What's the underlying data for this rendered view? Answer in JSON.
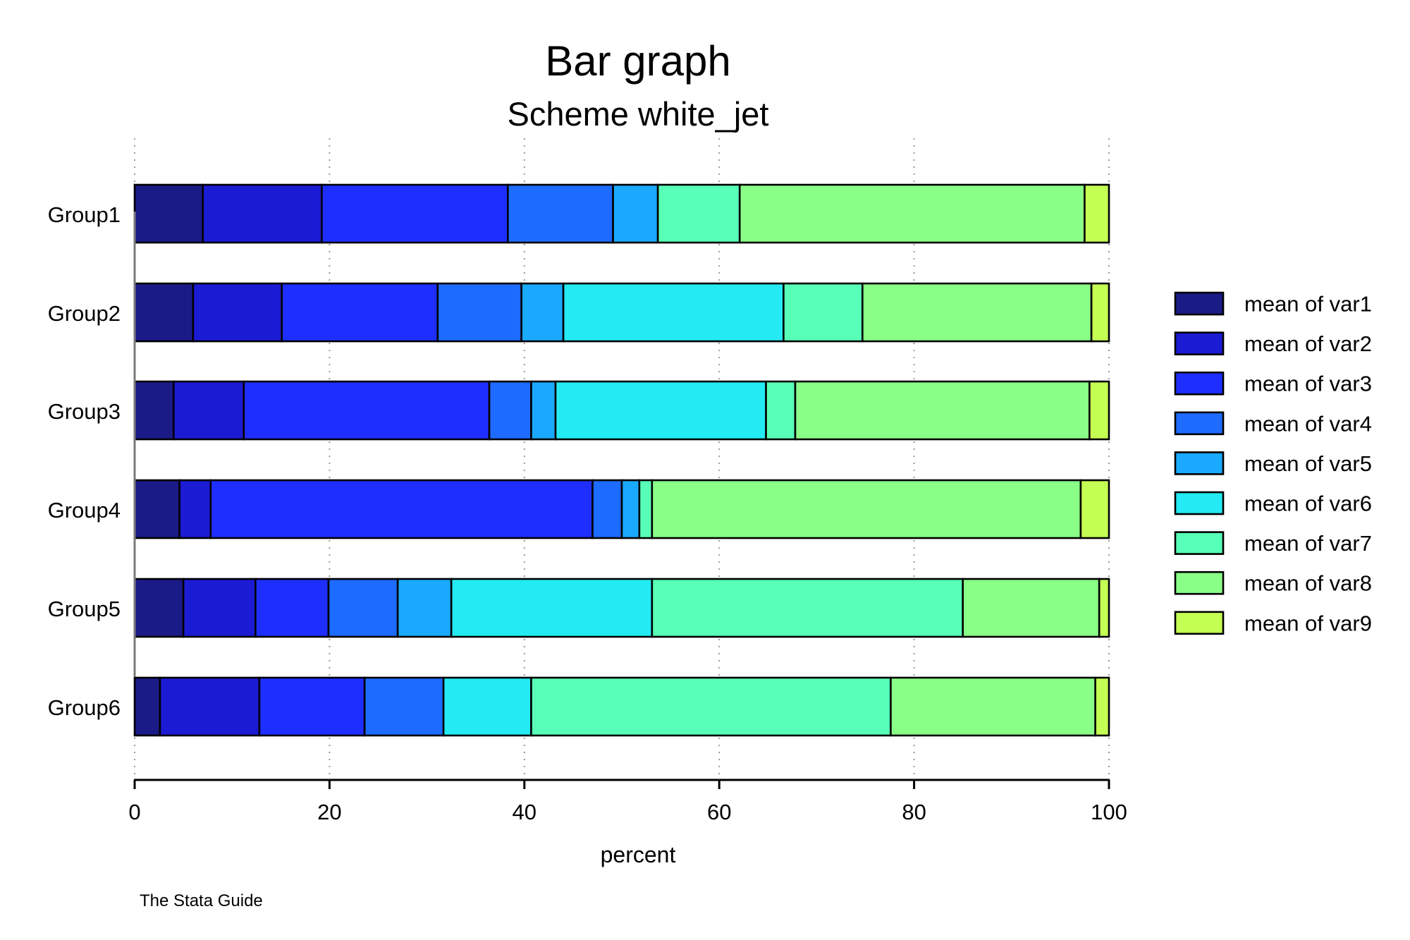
{
  "chart_data": {
    "type": "bar",
    "orientation": "horizontal",
    "stacked": "percent",
    "title": "Bar graph",
    "subtitle": "Scheme white_jet",
    "xlabel": "percent",
    "xlim": [
      0,
      100
    ],
    "xticks": [
      0,
      20,
      40,
      60,
      80,
      100
    ],
    "grid": true,
    "legend_position": "right",
    "note": "The Stata Guide",
    "categories": [
      "Group1",
      "Group2",
      "Group3",
      "Group4",
      "Group5",
      "Group6"
    ],
    "series": [
      {
        "name": "mean of var1",
        "color": "#1b1b87",
        "values": [
          7.0,
          6.0,
          4.0,
          4.6,
          5.0,
          2.6
        ]
      },
      {
        "name": "mean of var2",
        "color": "#1b1bd4",
        "values": [
          12.2,
          9.1,
          7.2,
          3.2,
          7.4,
          10.2
        ]
      },
      {
        "name": "mean of var3",
        "color": "#1e2eff",
        "values": [
          19.1,
          16.0,
          25.2,
          39.2,
          7.5,
          10.8
        ]
      },
      {
        "name": "mean of var4",
        "color": "#1e6bff",
        "values": [
          10.8,
          8.6,
          4.3,
          3.0,
          7.1,
          8.1
        ]
      },
      {
        "name": "mean of var5",
        "color": "#1aa9ff",
        "values": [
          4.6,
          4.3,
          2.5,
          1.8,
          5.5,
          0
        ]
      },
      {
        "name": "mean of var6",
        "color": "#23eaf3",
        "values": [
          0,
          22.6,
          21.6,
          0,
          20.6,
          9.0
        ]
      },
      {
        "name": "mean of var7",
        "color": "#57ffb7",
        "values": [
          8.4,
          8.1,
          3.0,
          1.3,
          31.9,
          36.9
        ]
      },
      {
        "name": "mean of var8",
        "color": "#8aff87",
        "values": [
          35.4,
          23.5,
          30.2,
          44.0,
          14.0,
          21.0
        ]
      },
      {
        "name": "mean of var9",
        "color": "#c4ff53",
        "values": [
          2.5,
          1.8,
          2.0,
          2.9,
          1.0,
          1.4
        ]
      }
    ]
  }
}
